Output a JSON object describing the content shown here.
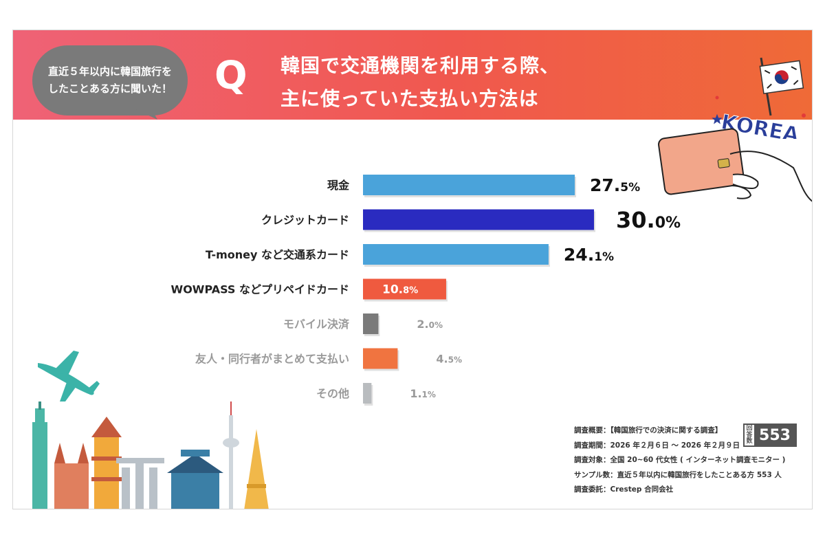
{
  "header": {
    "bubble_line1": "直近５年以内に韓国旅行を",
    "bubble_line2": "したことある方に聞いた！",
    "q_letter": "Q",
    "question_line1": "韓国で交通機関を利用する際、",
    "question_line2": "主に使っていた支払い方法は"
  },
  "deco": {
    "korea_text": "KOREA"
  },
  "chart_data": {
    "type": "bar",
    "orientation": "horizontal",
    "categories": [
      "現金",
      "クレジットカード",
      "T-money など交通系カード",
      "WOWPASS などプリペイドカード",
      "モバイル決済",
      "友人・同行者がまとめて支払い",
      "その他"
    ],
    "values": [
      27.5,
      30.0,
      24.1,
      10.8,
      2.0,
      4.5,
      1.1
    ],
    "value_labels": [
      {
        "int": "27.",
        "dec": "5%"
      },
      {
        "int": "30.",
        "dec": "0%"
      },
      {
        "int": "24.",
        "dec": "1%"
      },
      {
        "int": "10.",
        "dec": "8%"
      },
      {
        "int": "2.",
        "dec": "0%"
      },
      {
        "int": "4.",
        "dec": "5%"
      },
      {
        "int": "1.",
        "dec": "1%"
      }
    ],
    "colors": [
      "#4aa3da",
      "#2a2bc0",
      "#4aa3da",
      "#ef5a3f",
      "#7a7a7a",
      "#f07440",
      "#b9bcbf"
    ],
    "label_colors": [
      "#222222",
      "#222222",
      "#222222",
      "#222222",
      "#9a9a9a",
      "#9a9a9a",
      "#9a9a9a"
    ],
    "value_emphasis": [
      "large",
      "xlarge",
      "large",
      "inside",
      "small",
      "small",
      "small"
    ],
    "xlim": [
      0,
      30
    ]
  },
  "survey": {
    "overview": "調査概要：【韓国旅行での決済に関する調査】",
    "period": "調査期間：2026 年２月６日 ～ 2026 年２月９日",
    "target": "調査対象：全国 20~60 代女性 ( インターネット調査モニター )",
    "sample": "サンプル数：直近５年以内に韓国旅行をしたことある方 553 人",
    "commissioned": "調査委託：Crestep 合同会社",
    "n_label": "回答数",
    "n_value": "553"
  }
}
